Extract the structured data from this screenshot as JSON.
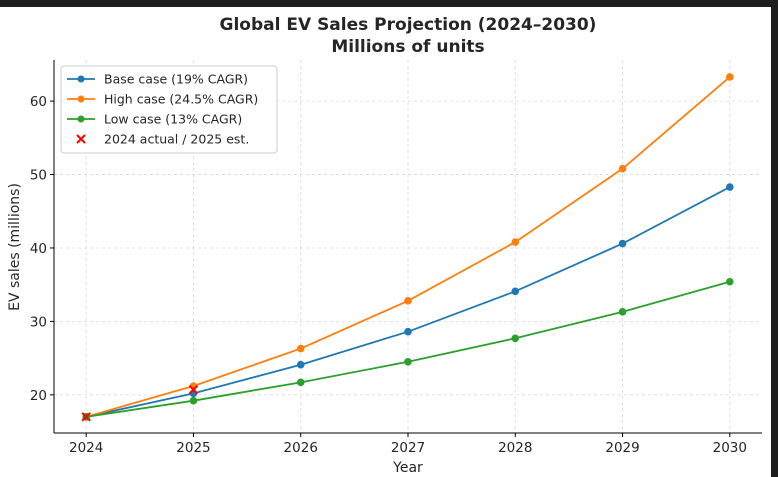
{
  "chart_data": {
    "type": "line",
    "title": "Global EV Sales Projection (2024–2030)",
    "subtitle": "Millions of units",
    "xlabel": "Year",
    "ylabel": "EV sales (millions)",
    "x": [
      2024,
      2025,
      2026,
      2027,
      2028,
      2029,
      2030
    ],
    "xlim": [
      2023.7,
      2030.3
    ],
    "ylim": [
      14.8,
      65.6
    ],
    "yticks": [
      20,
      30,
      40,
      50,
      60
    ],
    "grid": true,
    "legend_position": "top-left",
    "series": [
      {
        "name": "Base case (19% CAGR)",
        "color": "#1f77b4",
        "values": [
          17.0,
          20.2,
          24.1,
          28.6,
          34.1,
          40.6,
          48.3
        ]
      },
      {
        "name": "High case (24.5% CAGR)",
        "color": "#ff7f0e",
        "values": [
          17.0,
          21.2,
          26.3,
          32.8,
          40.8,
          50.8,
          63.3
        ]
      },
      {
        "name": "Low case (13% CAGR)",
        "color": "#2ca02c",
        "values": [
          17.0,
          19.2,
          21.7,
          24.5,
          27.7,
          31.3,
          35.4
        ]
      }
    ],
    "markers": {
      "name": "2024 actual / 2025 est.",
      "color": "#ff0000",
      "x": [
        2024,
        2025
      ],
      "values": [
        17.0,
        20.7
      ]
    }
  }
}
